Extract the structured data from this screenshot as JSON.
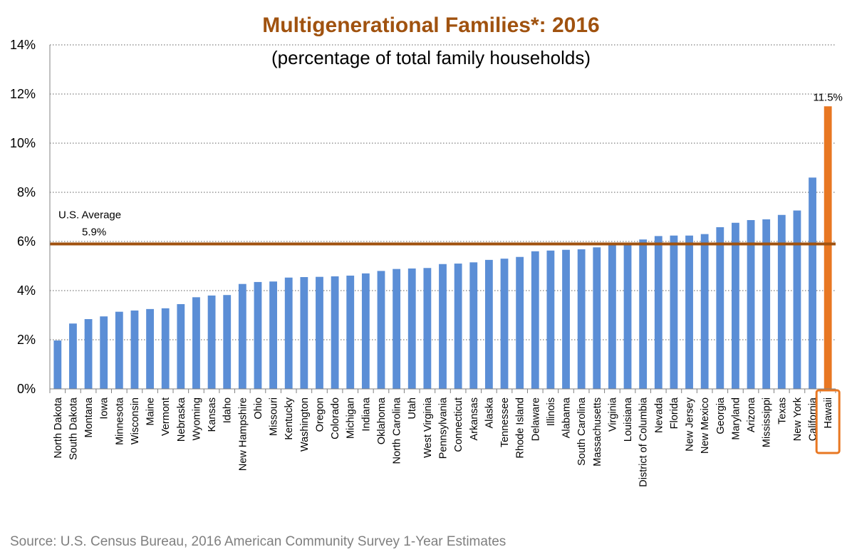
{
  "colors": {
    "bar": "#5b8ed6",
    "highlight": "#e87722",
    "average_line": "#a0520f",
    "title": "#a0520f",
    "grid": "#7f7f7f"
  },
  "source_text": "Source: U.S. Census Bureau, 2016 American Community Survey 1-Year Estimates",
  "chart_data": {
    "type": "bar",
    "title": "Multigenerational Families*: 2016",
    "subtitle": "(percentage of total family households)",
    "xlabel": "",
    "ylabel": "",
    "ylim": [
      0,
      14
    ],
    "yticks": [
      0,
      2,
      4,
      6,
      8,
      10,
      12,
      14
    ],
    "ytick_labels": [
      "0%",
      "2%",
      "4%",
      "6%",
      "8%",
      "10%",
      "12%",
      "14%"
    ],
    "grid": "horizontal dotted",
    "legend": "none",
    "categories": [
      "North Dakota",
      "South Dakota",
      "Montana",
      "Iowa",
      "Minnesota",
      "Wisconsin",
      "Maine",
      "Vermont",
      "Nebraska",
      "Wyoming",
      "Kansas",
      "Idaho",
      "New Hampshire",
      "Ohio",
      "Missouri",
      "Kentucky",
      "Washington",
      "Oregon",
      "Colorado",
      "Michigan",
      "Indiana",
      "Oklahoma",
      "North Carolina",
      "Utah",
      "West Virginia",
      "Pennsylvania",
      "Connecticut",
      "Arkansas",
      "Alaska",
      "Tennessee",
      "Rhode Island",
      "Delaware",
      "Illinois",
      "Alabama",
      "South Carolina",
      "Massachusetts",
      "Virginia",
      "Louisiana",
      "District of Columbia",
      "Nevada",
      "Florida",
      "New Jersey",
      "New Mexico",
      "Georgia",
      "Maryland",
      "Arizona",
      "Mississippi",
      "Texas",
      "New York",
      "California",
      "Hawaii"
    ],
    "values": [
      1.97,
      2.66,
      2.84,
      2.95,
      3.14,
      3.19,
      3.25,
      3.28,
      3.45,
      3.73,
      3.8,
      3.82,
      4.27,
      4.35,
      4.37,
      4.53,
      4.55,
      4.56,
      4.58,
      4.61,
      4.7,
      4.8,
      4.88,
      4.9,
      4.92,
      5.08,
      5.1,
      5.15,
      5.25,
      5.3,
      5.37,
      5.6,
      5.63,
      5.66,
      5.68,
      5.76,
      5.9,
      5.93,
      6.08,
      6.22,
      6.24,
      6.24,
      6.3,
      6.58,
      6.76,
      6.87,
      6.9,
      7.08,
      7.26,
      8.6,
      11.5
    ],
    "highlight": {
      "category": "Hawaii",
      "value_label": "11.5%"
    },
    "reference_line": {
      "value": 5.9,
      "label_line1": "U.S. Average",
      "label_line2": "5.9%"
    }
  }
}
